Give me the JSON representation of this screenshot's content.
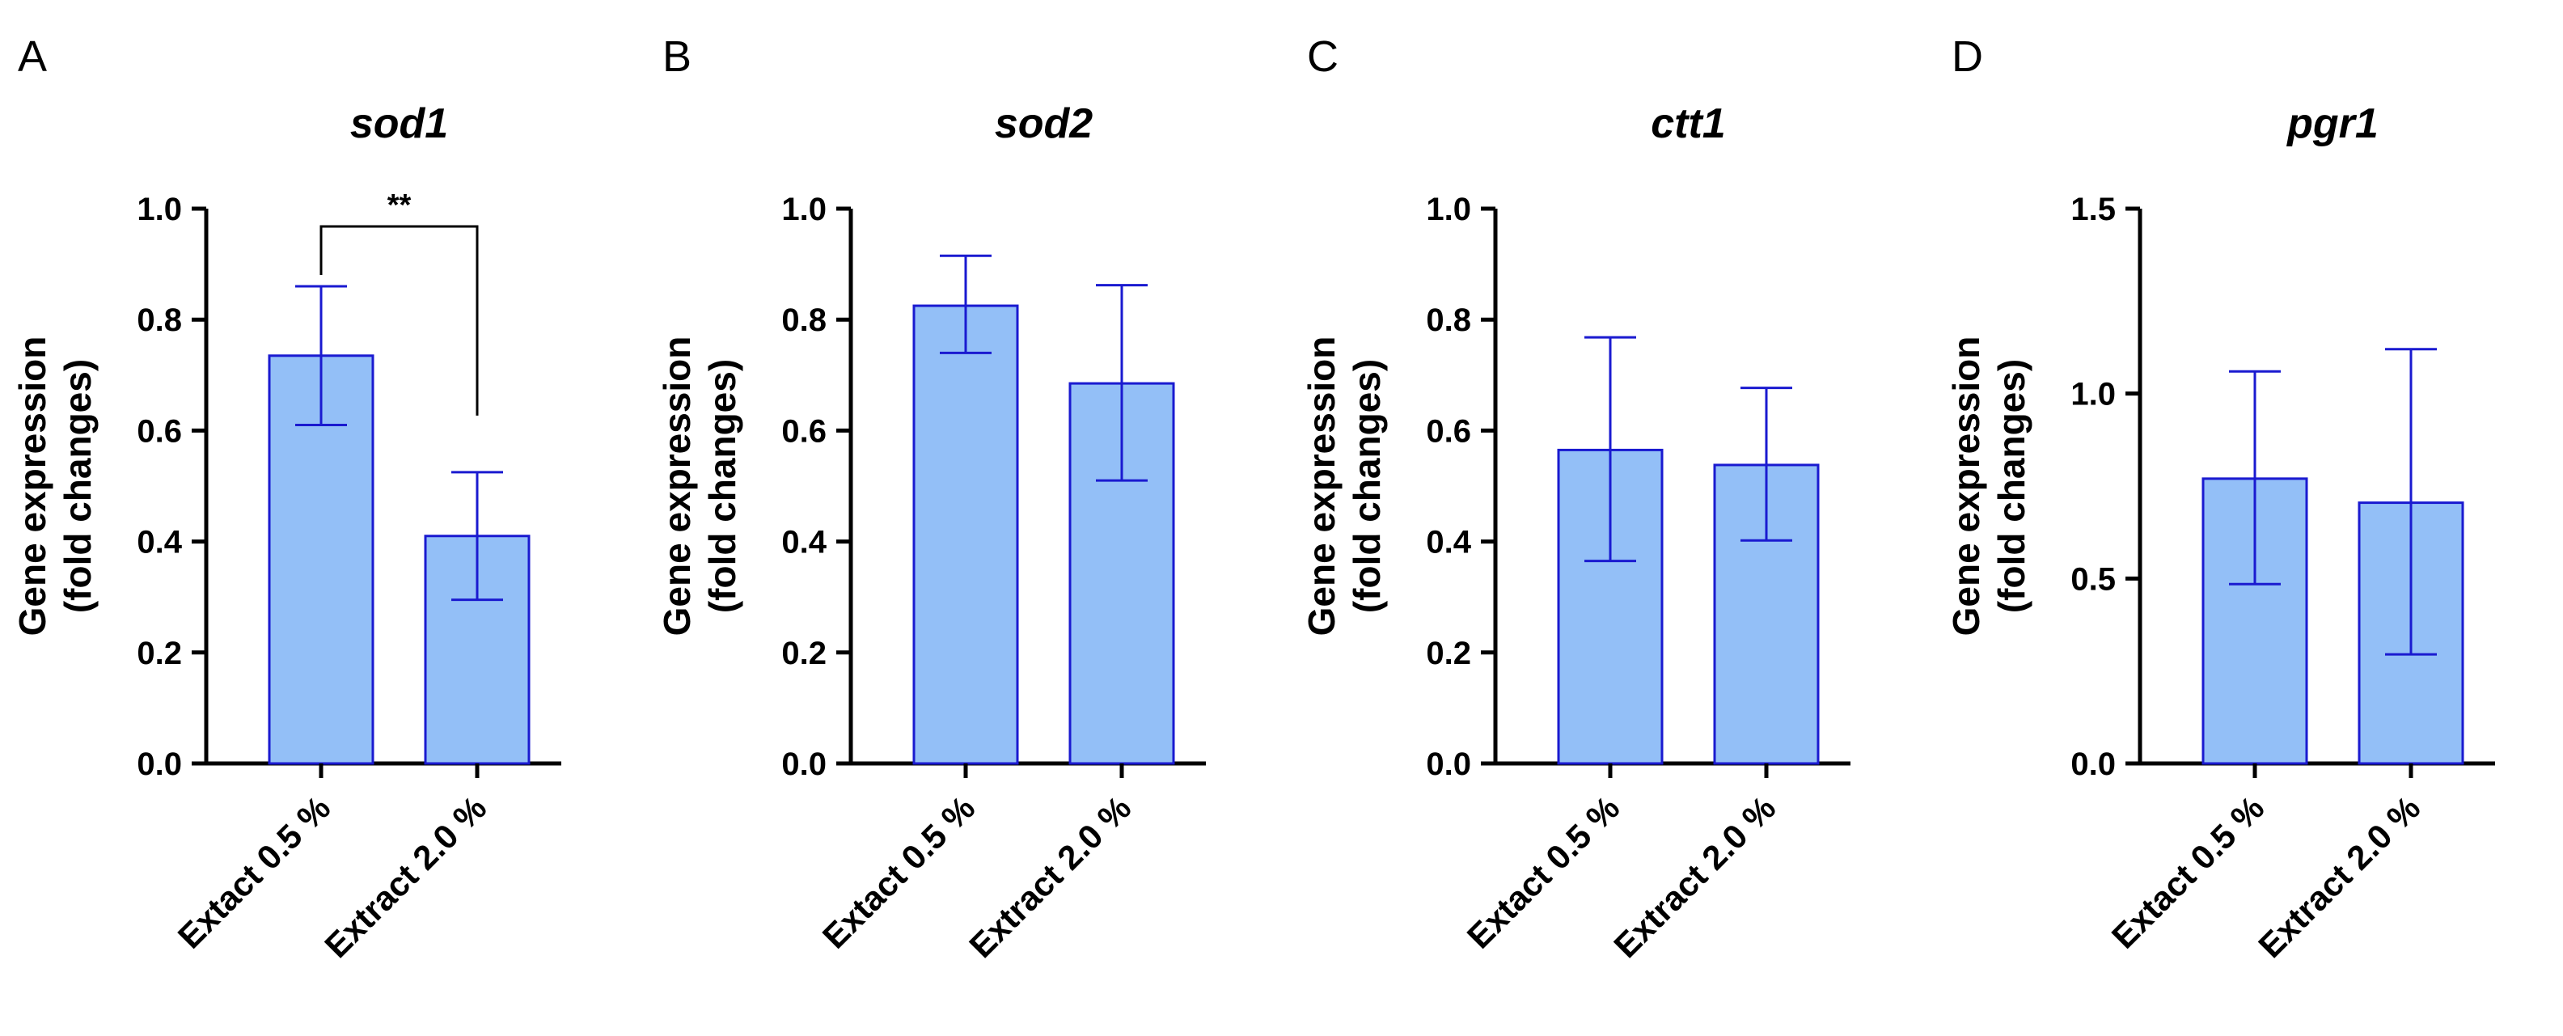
{
  "style": {
    "bar_fill": "#93bff7",
    "bar_stroke": "#1a1ad0",
    "error_color": "#1a1ad0",
    "axis_color": "#000000"
  },
  "chart_data": [
    {
      "type": "bar",
      "panel": "A",
      "title": "sod1",
      "ylabel": [
        "Gene expression",
        "(fold changes)"
      ],
      "categories": [
        "Extact 0.5 %",
        "Extract 2.0 %"
      ],
      "values": [
        0.735,
        0.41
      ],
      "errors": [
        [
          0.61,
          0.86
        ],
        [
          0.295,
          0.525
        ]
      ],
      "ylim": [
        0,
        1.0
      ],
      "yticks": [
        "0.0",
        "0.2",
        "0.4",
        "0.6",
        "0.8",
        "1.0"
      ],
      "significance": {
        "label": "**",
        "between": [
          0,
          1
        ]
      }
    },
    {
      "type": "bar",
      "panel": "B",
      "title": "sod2",
      "ylabel": [
        "Gene expression",
        "(fold changes)"
      ],
      "categories": [
        "Extact 0.5 %",
        "Extract 2.0 %"
      ],
      "values": [
        0.825,
        0.685
      ],
      "errors": [
        [
          0.74,
          0.915
        ],
        [
          0.51,
          0.862
        ]
      ],
      "ylim": [
        0,
        1.0
      ],
      "yticks": [
        "0.0",
        "0.2",
        "0.4",
        "0.6",
        "0.8",
        "1.0"
      ]
    },
    {
      "type": "bar",
      "panel": "C",
      "title": "ctt1",
      "ylabel": [
        "Gene expression",
        "(fold changes)"
      ],
      "categories": [
        "Extact 0.5 %",
        "Extract 2.0 %"
      ],
      "values": [
        0.565,
        0.538
      ],
      "errors": [
        [
          0.365,
          0.768
        ],
        [
          0.402,
          0.677
        ]
      ],
      "ylim": [
        0,
        1.0
      ],
      "yticks": [
        "0.0",
        "0.2",
        "0.4",
        "0.6",
        "0.8",
        "1.0"
      ]
    },
    {
      "type": "bar",
      "panel": "D",
      "title": "pgr1",
      "ylabel": [
        "Gene expression",
        "(fold changes)"
      ],
      "categories": [
        "Extact 0.5 %",
        "Extract 2.0 %"
      ],
      "values": [
        0.77,
        0.705
      ],
      "errors": [
        [
          0.485,
          1.06
        ],
        [
          0.295,
          1.12
        ]
      ],
      "ylim": [
        0,
        1.5
      ],
      "yticks": [
        "0.0",
        "0.5",
        "1.0",
        "1.5"
      ]
    }
  ]
}
